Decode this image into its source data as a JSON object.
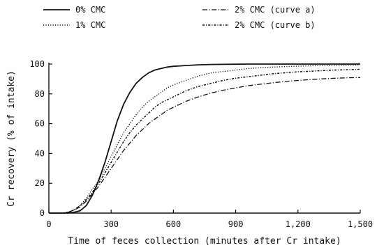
{
  "chart_data": {
    "type": "line",
    "title": "",
    "xlabel": "Time of feces collection (minutes after Cr intake)",
    "ylabel": "Cr recovery (% of intake)",
    "xlim": [
      0,
      1500
    ],
    "ylim": [
      0,
      100
    ],
    "x_ticks": [
      {
        "value": 0,
        "label": "0"
      },
      {
        "value": 300,
        "label": "300"
      },
      {
        "value": 600,
        "label": "600"
      },
      {
        "value": 900,
        "label": "900"
      },
      {
        "value": 1200,
        "label": "1,200"
      },
      {
        "value": 1500,
        "label": "1,500"
      }
    ],
    "y_ticks": [
      {
        "value": 0,
        "label": "0"
      },
      {
        "value": 20,
        "label": "20"
      },
      {
        "value": 40,
        "label": "40"
      },
      {
        "value": 60,
        "label": "60"
      },
      {
        "value": 80,
        "label": "80"
      },
      {
        "value": 100,
        "label": "100"
      }
    ],
    "grid": false,
    "legend_position": "top",
    "x": [
      0,
      60,
      90,
      120,
      150,
      180,
      210,
      240,
      270,
      300,
      330,
      360,
      390,
      420,
      450,
      480,
      510,
      540,
      570,
      600,
      660,
      720,
      780,
      840,
      900,
      960,
      1020,
      1080,
      1140,
      1200,
      1260,
      1320,
      1380,
      1440,
      1500
    ],
    "series": [
      {
        "name": "0% CMC",
        "style": "solid",
        "values": [
          0,
          0,
          0,
          0.5,
          1.5,
          5,
          12,
          22,
          34,
          48,
          62,
          73,
          81,
          87,
          91,
          94,
          96,
          97,
          98,
          98.5,
          99,
          99.5,
          99.7,
          99.8,
          99.9,
          100,
          100,
          100,
          100,
          100,
          100,
          100,
          100,
          100,
          100
        ]
      },
      {
        "name": "1% CMC",
        "style": "dotted",
        "values": [
          0,
          0,
          0.5,
          2,
          5,
          10,
          16,
          22,
          30,
          38,
          46,
          54,
          60,
          66,
          71,
          75,
          78,
          81,
          84,
          86,
          89,
          92,
          94,
          95,
          96,
          97,
          97.5,
          98,
          98.3,
          98.6,
          98.8,
          99,
          99.2,
          99.3,
          99.5
        ]
      },
      {
        "name": "2% CMC (curve a)",
        "style": "long-dash-dot",
        "values": [
          0,
          0,
          0.3,
          2,
          4,
          8,
          13,
          18,
          24,
          30,
          36,
          42,
          47,
          52,
          56,
          60,
          63,
          66,
          69,
          71,
          75,
          78,
          80.5,
          82.5,
          84,
          85.5,
          86.5,
          87.5,
          88.3,
          89,
          89.6,
          90.1,
          90.5,
          90.8,
          91
        ]
      },
      {
        "name": "2% CMC (curve b)",
        "style": "dash-dot",
        "values": [
          0,
          0,
          0.5,
          2,
          5,
          9,
          14,
          20,
          27,
          34,
          41,
          48,
          54,
          59,
          63,
          67,
          71,
          74,
          76,
          78,
          82,
          85,
          87,
          89,
          90.5,
          91.5,
          92.5,
          93.5,
          94.2,
          94.8,
          95.2,
          95.6,
          96,
          96.2,
          96.5
        ]
      }
    ]
  }
}
